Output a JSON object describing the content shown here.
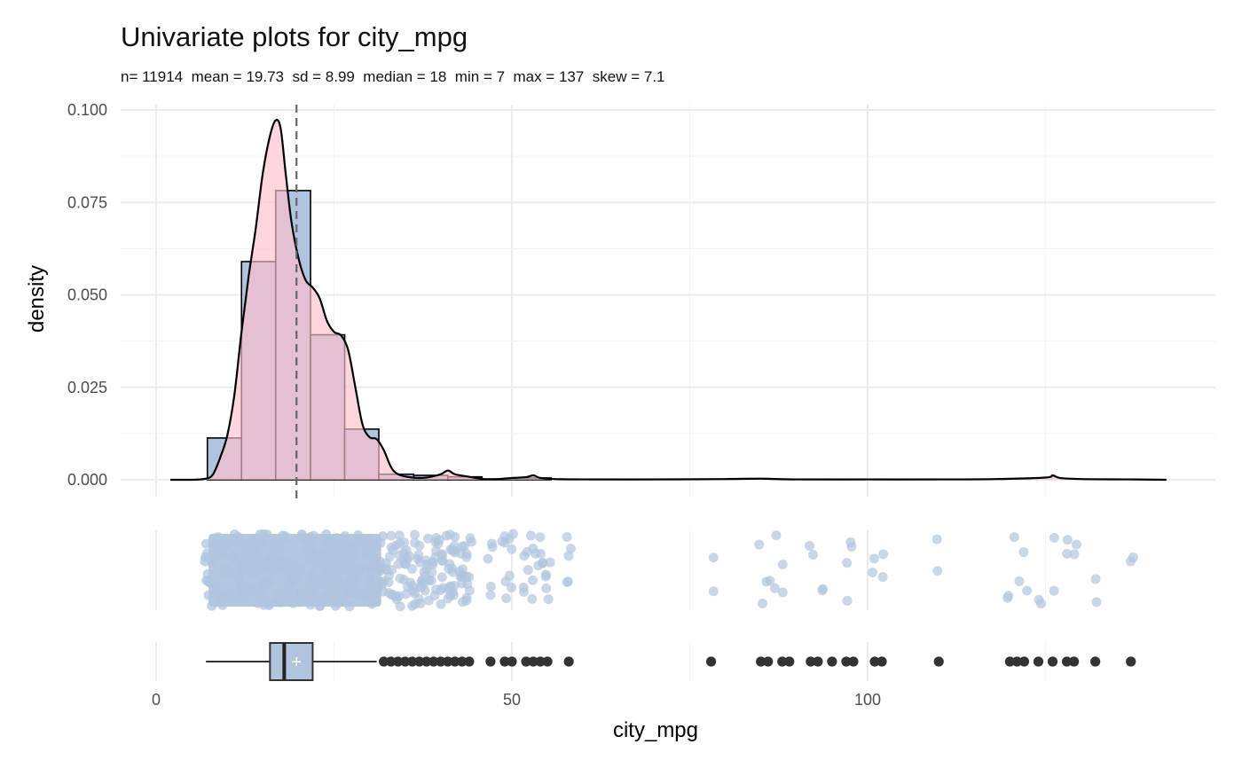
{
  "chart_data": {
    "type": "histogram+density+jitter+boxplot",
    "title": "Univariate plots for city_mpg",
    "subtitle": "n= 11914  mean = 19.73  sd = 8.99  median = 18  min = 7  max = 137  skew = 7.1",
    "variable": "city_mpg",
    "xlabel": "city_mpg",
    "ylabel": "density",
    "xlim": [
      -2,
      149
    ],
    "ylim": [
      0,
      0.1
    ],
    "x_ticks": [
      0,
      50,
      100
    ],
    "y_ticks": [
      0.0,
      0.025,
      0.05,
      0.075,
      0.1
    ],
    "y_tick_labels": [
      "0.000",
      "0.025",
      "0.050",
      "0.075",
      "0.100"
    ],
    "grid": true,
    "stats": {
      "n": 11914,
      "mean": 19.73,
      "sd": 8.99,
      "median": 18,
      "min": 7,
      "max": 137,
      "skew": 7.1
    },
    "histogram": {
      "fill_color": "#b0c4de",
      "border_color": "#000000",
      "bin_width": 4.83,
      "bins": [
        {
          "x0": 7.2,
          "x1": 12.0,
          "density": 0.0113
        },
        {
          "x0": 12.0,
          "x1": 16.8,
          "density": 0.059
        },
        {
          "x0": 16.8,
          "x1": 21.7,
          "density": 0.0782
        },
        {
          "x0": 21.7,
          "x1": 26.5,
          "density": 0.0392
        },
        {
          "x0": 26.5,
          "x1": 31.3,
          "density": 0.0137
        },
        {
          "x0": 31.3,
          "x1": 36.2,
          "density": 0.0015
        },
        {
          "x0": 36.2,
          "x1": 41.0,
          "density": 0.0012
        },
        {
          "x0": 41.0,
          "x1": 45.8,
          "density": 0.0008
        },
        {
          "x0": 45.8,
          "x1": 50.7,
          "density": 0.0002
        },
        {
          "x0": 50.7,
          "x1": 55.5,
          "density": 0.0005
        }
      ]
    },
    "density_curve": {
      "fill_color": "#ffc0cb",
      "fill_opacity": 0.65,
      "line_color": "#000000",
      "x": [
        2,
        5,
        7,
        8,
        9,
        10,
        11,
        12,
        13,
        14,
        15,
        16,
        16.8,
        17.5,
        18.2,
        19,
        20,
        21,
        22,
        23,
        24,
        25,
        26,
        27,
        28,
        29,
        30,
        31,
        32,
        33,
        34,
        36,
        38,
        40,
        41,
        42,
        44,
        46,
        48,
        50,
        52,
        53,
        54,
        56,
        60,
        70,
        80,
        85,
        90,
        100,
        110,
        118,
        125,
        126,
        127,
        130,
        137,
        142
      ],
      "y": [
        0,
        0,
        0.0003,
        0.0015,
        0.006,
        0.012,
        0.023,
        0.04,
        0.055,
        0.068,
        0.083,
        0.093,
        0.0972,
        0.095,
        0.083,
        0.07,
        0.06,
        0.054,
        0.052,
        0.049,
        0.043,
        0.04,
        0.039,
        0.035,
        0.025,
        0.015,
        0.0115,
        0.011,
        0.008,
        0.0035,
        0.0015,
        0.0006,
        0.0006,
        0.0015,
        0.0025,
        0.0015,
        0.0008,
        0.0002,
        0.0002,
        0.0005,
        0.0007,
        0.0012,
        0.0005,
        0.0002,
        0.0001,
        0.0001,
        0.0002,
        0.0003,
        0.0001,
        0.0001,
        0.0001,
        0.0002,
        0.0006,
        0.0012,
        0.0005,
        0.0002,
        0.0001,
        0
      ]
    },
    "mean_line": {
      "value": 19.73,
      "style": "dashed",
      "color": "#666666"
    },
    "jitter": {
      "color": "#b0c4de",
      "dense_range": [
        7,
        32
      ],
      "outliers": [
        33,
        34,
        35,
        36,
        37,
        38,
        39,
        40,
        41,
        42,
        43,
        44,
        47,
        49,
        50,
        52,
        53,
        54,
        55,
        58,
        78,
        85,
        86,
        87,
        88,
        92,
        94,
        97,
        98,
        101,
        102,
        110,
        120,
        121,
        122,
        124,
        126,
        128,
        129,
        132,
        137
      ]
    },
    "boxplot": {
      "fill_color": "#b0c4de",
      "whisker_low": 7,
      "q1": 16,
      "median": 18,
      "q3": 22,
      "whisker_high": 31,
      "mean_marker": "+",
      "outlier_color": "#333333",
      "outliers": [
        32,
        33,
        34,
        35,
        36,
        37,
        38,
        39,
        40,
        41,
        42,
        43,
        44,
        47,
        49,
        50,
        52,
        53,
        54,
        55,
        58,
        78,
        85,
        86,
        88,
        89,
        92,
        93,
        95,
        97,
        98,
        101,
        102,
        110,
        120,
        121,
        122,
        124,
        126,
        128,
        129,
        132,
        137
      ]
    }
  }
}
